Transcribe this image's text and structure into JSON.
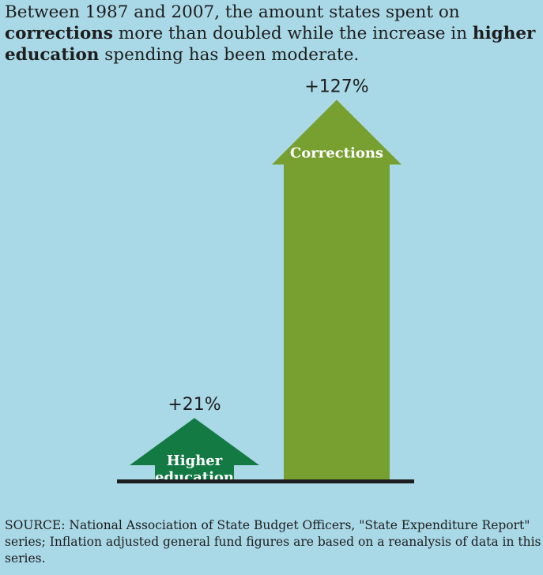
{
  "intro": {
    "part1": "Between 1987 and 2007, the amount states spent on",
    "bold1": "corrections",
    "part2": " more than doubled while the increase in ",
    "bold2": "higher",
    "bold3": "education",
    "part3": " spending has been moderate."
  },
  "chart_data": {
    "type": "bar",
    "title": "Between 1987 and 2007, the amount states spent on corrections more than doubled while the increase in higher education spending has been moderate.",
    "categories": [
      "Higher education",
      "Corrections"
    ],
    "values": [
      21,
      127
    ],
    "value_labels": [
      "+21%",
      "+127%"
    ],
    "bar_label_lines": [
      [
        "Higher",
        "education"
      ],
      [
        "Corrections"
      ]
    ],
    "units": "percent change",
    "ylim": [
      0,
      130
    ],
    "colors": {
      "higher_education": "#137a44",
      "corrections": "#78a030",
      "baseline": "#1e1e1e",
      "label_text": "#ffffff"
    }
  },
  "source": {
    "text": "SOURCE: National Association of State Budget Officers, \"State Expenditure Report\" series; Inflation adjusted general fund figures are based on a reanalysis of data in this series."
  }
}
